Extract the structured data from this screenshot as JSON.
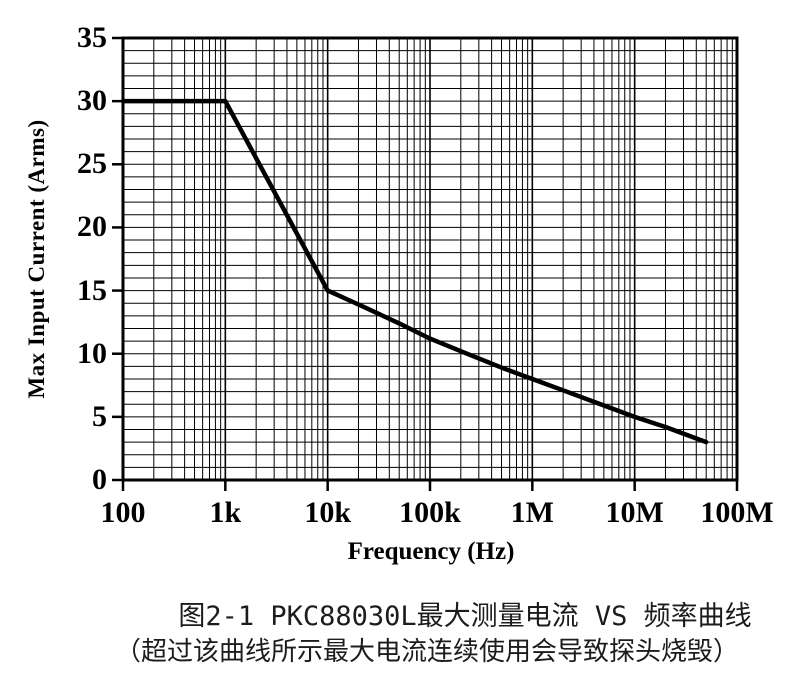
{
  "figure": {
    "y_axis": {
      "title": "Max Input Current (Arms)"
    },
    "x_axis": {
      "title": "Frequency (Hz)"
    },
    "caption_line1": "图2-1 PKC88030L最大测量电流 VS 频率曲线",
    "caption_line2": "（超过该曲线所示最大电流连续使用会导致探头烧毁）"
  },
  "chart_data": {
    "type": "line",
    "title": "",
    "xlabel": "Frequency (Hz)",
    "ylabel": "Max Input Current (Arms)",
    "x_scale": "log",
    "xlim": [
      100,
      100000000
    ],
    "ylim": [
      0,
      35
    ],
    "x_ticks": [
      {
        "value": 100,
        "label": "100"
      },
      {
        "value": 1000,
        "label": "1k"
      },
      {
        "value": 10000,
        "label": "10k"
      },
      {
        "value": 100000,
        "label": "100k"
      },
      {
        "value": 1000000,
        "label": "1M"
      },
      {
        "value": 10000000,
        "label": "10M"
      },
      {
        "value": 100000000,
        "label": "100M"
      }
    ],
    "y_ticks": [
      {
        "value": 0,
        "label": "0"
      },
      {
        "value": 5,
        "label": "5"
      },
      {
        "value": 10,
        "label": "10"
      },
      {
        "value": 15,
        "label": "15"
      },
      {
        "value": 20,
        "label": "20"
      },
      {
        "value": 25,
        "label": "25"
      },
      {
        "value": 30,
        "label": "30"
      },
      {
        "value": 35,
        "label": "35"
      }
    ],
    "grid": {
      "y_minor_step": 1,
      "x_minor": "log decades, subdivisions 2-9",
      "on": true
    },
    "legend": "none",
    "series": [
      {
        "name": "PKC88030L max measuring current vs frequency",
        "color": "#000000",
        "points": [
          [
            100,
            30
          ],
          [
            1000,
            30
          ],
          [
            10000,
            15
          ],
          [
            20000,
            13.9
          ],
          [
            50000,
            12.4
          ],
          [
            100000,
            11.2
          ],
          [
            200000,
            10.2
          ],
          [
            500000,
            8.9
          ],
          [
            1000000,
            8
          ],
          [
            2000000,
            7.1
          ],
          [
            5000000,
            5.9
          ],
          [
            10000000,
            5
          ],
          [
            20000000,
            4.2
          ],
          [
            50000000,
            3
          ]
        ]
      }
    ],
    "colors": {
      "line": "#000000",
      "grid": "#000000",
      "background": "#ffffff"
    }
  }
}
